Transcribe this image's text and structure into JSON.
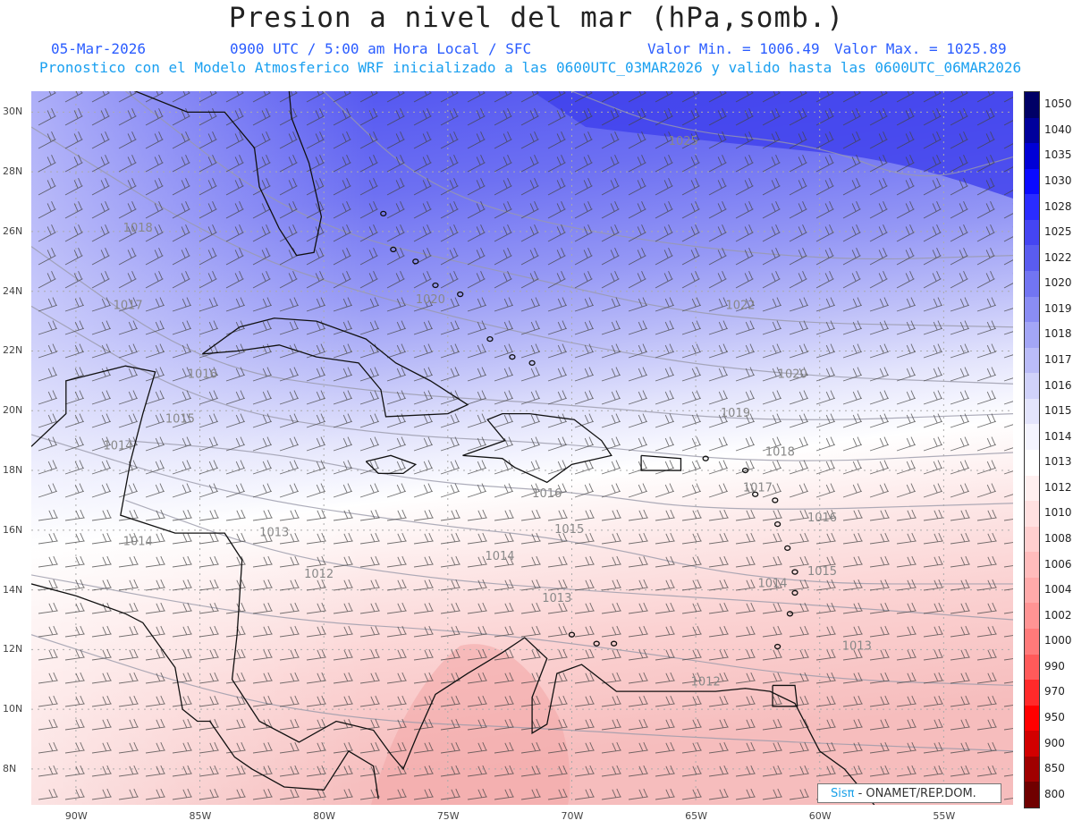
{
  "header": {
    "title": "Presion a nivel del mar (hPa,somb.)",
    "date": "05-Mar-2026",
    "time": "0900 UTC / 5:00 am Hora Local / SFC",
    "min_label": "Valor Min. = 1006.49",
    "max_label": "Valor Max. = 1025.89",
    "model_line": "Pronostico con el Modelo Atmosferico WRF inicializado a las 0600UTC_03MAR2026 y valido hasta las  0600UTC_06MAR2026"
  },
  "axes": {
    "lat_labels": [
      "30N",
      "28N",
      "26N",
      "24N",
      "22N",
      "20N",
      "18N",
      "16N",
      "14N",
      "12N",
      "10N",
      "8N"
    ],
    "lon_labels": [
      "90W",
      "85W",
      "80W",
      "75W",
      "70W",
      "65W",
      "60W",
      "55W"
    ]
  },
  "colorbar": {
    "labels": [
      "1050",
      "1040",
      "1035",
      "1030",
      "1028",
      "1025",
      "1022",
      "1020",
      "1019",
      "1018",
      "1017",
      "1016",
      "1015",
      "1014",
      "1013",
      "1012",
      "1010",
      "1008",
      "1006",
      "1004",
      "1002",
      "1000",
      "990",
      "970",
      "950",
      "900",
      "850",
      "800"
    ],
    "colors": [
      "#000066",
      "#00009c",
      "#0000d6",
      "#0a0aff",
      "#2a2cff",
      "#4545f2",
      "#5a5cf0",
      "#7275f2",
      "#8a8df4",
      "#a3a6f6",
      "#babcf8",
      "#d0d2fa",
      "#e3e4fc",
      "#f4f4fe",
      "#ffffff",
      "#fff0f0",
      "#ffe0e0",
      "#ffcfcf",
      "#ffbcbc",
      "#ffaaaa",
      "#ff9494",
      "#ff7a7a",
      "#ff5a5a",
      "#ff2a2a",
      "#ff0000",
      "#d20000",
      "#a00000",
      "#700000"
    ]
  },
  "map": {
    "isobar_labels": [
      {
        "text": "1025",
        "lon": -65.5,
        "lat": 28.9
      },
      {
        "text": "1022",
        "lon": -63.2,
        "lat": 23.4
      },
      {
        "text": "1020",
        "lon": -75.7,
        "lat": 23.6
      },
      {
        "text": "1020",
        "lon": -61.1,
        "lat": 21.1
      },
      {
        "text": "1018",
        "lon": -87.5,
        "lat": 26.0
      },
      {
        "text": "1018",
        "lon": -61.6,
        "lat": 18.5
      },
      {
        "text": "1019",
        "lon": -63.4,
        "lat": 19.8
      },
      {
        "text": "1017",
        "lon": -87.9,
        "lat": 23.4
      },
      {
        "text": "1017",
        "lon": -62.5,
        "lat": 17.3
      },
      {
        "text": "1016",
        "lon": -84.9,
        "lat": 21.1
      },
      {
        "text": "1016",
        "lon": -71.0,
        "lat": 17.1
      },
      {
        "text": "1016",
        "lon": -59.9,
        "lat": 16.3
      },
      {
        "text": "1015",
        "lon": -85.8,
        "lat": 19.6
      },
      {
        "text": "1015",
        "lon": -70.1,
        "lat": 15.9
      },
      {
        "text": "1015",
        "lon": -59.9,
        "lat": 14.5
      },
      {
        "text": "1014",
        "lon": -88.3,
        "lat": 18.7
      },
      {
        "text": "1014",
        "lon": -87.5,
        "lat": 15.5
      },
      {
        "text": "1014",
        "lon": -72.9,
        "lat": 15.0
      },
      {
        "text": "1014",
        "lon": -61.9,
        "lat": 14.1
      },
      {
        "text": "1013",
        "lon": -82.0,
        "lat": 15.8
      },
      {
        "text": "1013",
        "lon": -70.6,
        "lat": 13.6
      },
      {
        "text": "1013",
        "lon": -58.5,
        "lat": 12.0
      },
      {
        "text": "1012",
        "lon": -80.2,
        "lat": 14.4
      },
      {
        "text": "1012",
        "lon": -64.6,
        "lat": 10.8
      }
    ]
  },
  "credit": {
    "brand": "Sisπ",
    "text": " - ONAMET/REP.DOM."
  }
}
